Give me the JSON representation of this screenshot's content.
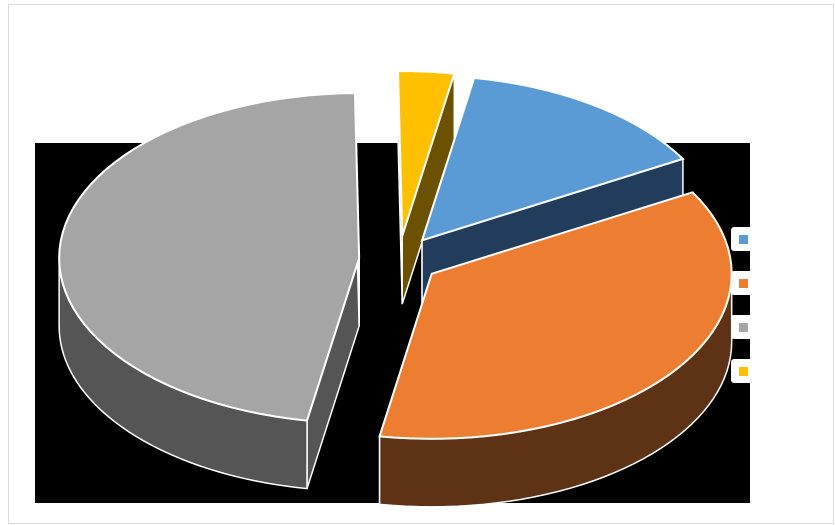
{
  "chart_data": {
    "type": "pie",
    "style": "3d-exploded",
    "categories": [
      "",
      "",
      "",
      ""
    ],
    "values": [
      14,
      36,
      47,
      3
    ],
    "colors": [
      "#5b9bd5",
      "#ed7d31",
      "#a5a5a5",
      "#ffc000"
    ],
    "side_colors": [
      "#223d5c",
      "#5e3214",
      "#555555",
      "#6b5100"
    ],
    "title": "",
    "legend": "right",
    "data_labels": false
  }
}
